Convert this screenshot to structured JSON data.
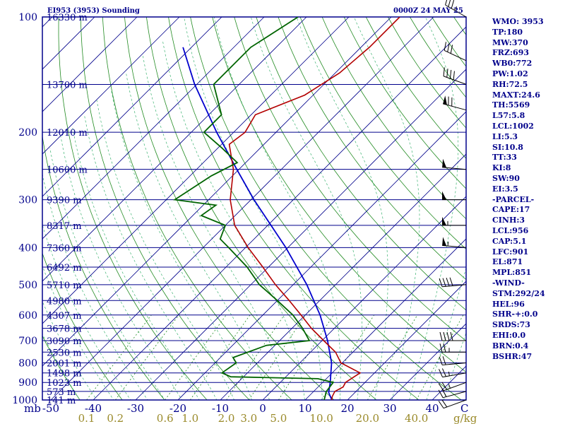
{
  "header": {
    "title": "EI953 (3953) Sounding",
    "time": "0000Z 24 MAY 25"
  },
  "sidebar": [
    "WMO: 3953",
    "TP:180",
    "MW:370",
    "FRZ:693",
    "WB0:772",
    "PW:1.02",
    "RH:72.5",
    "MAXT:24.6",
    "TH:5569",
    "L57:5.8",
    "LCL:1002",
    "LI:5.3",
    "SI:10.8",
    "TT:33",
    "KI:8",
    "SW:90",
    "EI:3.5",
    "-PARCEL-",
    "CAPE:17",
    "CINH:3",
    "LCL:956",
    "CAP:5.1",
    "LFC:901",
    "EL:871",
    "MPL:851",
    "-WIND-",
    "STM:292/24",
    "HEL:96",
    "SHR-+:0.0",
    "SRDS:73",
    "EHI:0.0",
    "BRN:0.4",
    "BSHR:47"
  ],
  "colors": {
    "isobar": "#00008b",
    "isotherm": "#00008b",
    "dry_adiabat": "#228b22",
    "moist_adiabat": "#3cb371",
    "mixing_ratio": "#228b22",
    "temperature": "#b30000",
    "dewpoint": "#006400",
    "parcel": "#0000cd",
    "wind_barb": "#000000"
  },
  "chart_data": {
    "type": "skew-t",
    "pressure_axis_label": "mb",
    "pressure_ticks": [
      100,
      200,
      300,
      400,
      500,
      600,
      700,
      800,
      900,
      1000
    ],
    "temperature_axis_unit": "C",
    "temperature_ticks": [
      -50,
      -40,
      -30,
      -20,
      -10,
      0,
      10,
      20,
      30,
      40
    ],
    "mixing_ratio_unit": "g/kg",
    "mixing_ratio_ticks": [
      "0.1",
      "0.2",
      "0.6",
      "1.0",
      "2.0",
      "3.0",
      "5.0",
      "10.0",
      "20.0",
      "40.0"
    ],
    "mixing_ratio_values": [
      0.1,
      0.2,
      0.6,
      1.0,
      2.0,
      3.0,
      5.0,
      10.0,
      20.0,
      40.0
    ],
    "height_labels": [
      {
        "p": 100,
        "text": "16330 m"
      },
      {
        "p": 150,
        "text": "13700 m"
      },
      {
        "p": 200,
        "text": "12010 m"
      },
      {
        "p": 250,
        "text": "10600 m"
      },
      {
        "p": 300,
        "text": "9390 m"
      },
      {
        "p": 350,
        "text": "8317 m"
      },
      {
        "p": 400,
        "text": "7360 m"
      },
      {
        "p": 450,
        "text": "6492 m"
      },
      {
        "p": 500,
        "text": "5710 m"
      },
      {
        "p": 550,
        "text": "4980 m"
      },
      {
        "p": 600,
        "text": "4307 m"
      },
      {
        "p": 650,
        "text": "3678 m"
      },
      {
        "p": 700,
        "text": "3090 m"
      },
      {
        "p": 750,
        "text": "2530 m"
      },
      {
        "p": 800,
        "text": "2001 m"
      },
      {
        "p": 850,
        "text": "1498 m"
      },
      {
        "p": 900,
        "text": "1023 m"
      },
      {
        "p": 950,
        "text": "573 m"
      },
      {
        "p": 1000,
        "text": "141 m"
      }
    ],
    "temperature": [
      {
        "p": 1000,
        "t": 16.3
      },
      {
        "p": 980,
        "t": 15.6
      },
      {
        "p": 950,
        "t": 15.0
      },
      {
        "p": 925,
        "t": 15.9
      },
      {
        "p": 900,
        "t": 15.4
      },
      {
        "p": 870,
        "t": 16.1
      },
      {
        "p": 850,
        "t": 16.6
      },
      {
        "p": 800,
        "t": 9.7
      },
      {
        "p": 750,
        "t": 5.9
      },
      {
        "p": 700,
        "t": 0.4
      },
      {
        "p": 650,
        "t": -5.4
      },
      {
        "p": 600,
        "t": -11.0
      },
      {
        "p": 550,
        "t": -17.2
      },
      {
        "p": 500,
        "t": -24.2
      },
      {
        "p": 450,
        "t": -31.3
      },
      {
        "p": 400,
        "t": -39.4
      },
      {
        "p": 350,
        "t": -47.8
      },
      {
        "p": 300,
        "t": -54.9
      },
      {
        "p": 250,
        "t": -61.3
      },
      {
        "p": 215,
        "t": -68.2
      },
      {
        "p": 200,
        "t": -67.3
      },
      {
        "p": 180,
        "t": -69.0
      },
      {
        "p": 160,
        "t": -62.0
      },
      {
        "p": 140,
        "t": -59.0
      },
      {
        "p": 120,
        "t": -58.0
      },
      {
        "p": 100,
        "t": -58.0
      }
    ],
    "dewpoint": [
      {
        "p": 1000,
        "t": 14.5
      },
      {
        "p": 950,
        "t": 13.0
      },
      {
        "p": 900,
        "t": 12.5
      },
      {
        "p": 880,
        "t": 8.0
      },
      {
        "p": 870,
        "t": -13.0
      },
      {
        "p": 850,
        "t": -16.0
      },
      {
        "p": 800,
        "t": -15.0
      },
      {
        "p": 775,
        "t": -17.0
      },
      {
        "p": 720,
        "t": -12.0
      },
      {
        "p": 700,
        "t": -3.0
      },
      {
        "p": 650,
        "t": -7.5
      },
      {
        "p": 600,
        "t": -12.9
      },
      {
        "p": 550,
        "t": -20.0
      },
      {
        "p": 500,
        "t": -28.0
      },
      {
        "p": 450,
        "t": -35.0
      },
      {
        "p": 400,
        "t": -44.0
      },
      {
        "p": 380,
        "t": -48.0
      },
      {
        "p": 350,
        "t": -50.0
      },
      {
        "p": 330,
        "t": -58.0
      },
      {
        "p": 310,
        "t": -57.0
      },
      {
        "p": 300,
        "t": -68.0
      },
      {
        "p": 260,
        "t": -65.0
      },
      {
        "p": 240,
        "t": -62.0
      },
      {
        "p": 220,
        "t": -69.0
      },
      {
        "p": 200,
        "t": -77.0
      },
      {
        "p": 180,
        "t": -77.0
      },
      {
        "p": 150,
        "t": -86.0
      },
      {
        "p": 120,
        "t": -86.0
      },
      {
        "p": 100,
        "t": -82.0
      }
    ],
    "parcel": [
      {
        "p": 1000,
        "t": 16.3
      },
      {
        "p": 956,
        "t": 13.8
      },
      {
        "p": 900,
        "t": 11.8
      },
      {
        "p": 800,
        "t": 7.5
      },
      {
        "p": 700,
        "t": 1.3
      },
      {
        "p": 600,
        "t": -6.5
      },
      {
        "p": 500,
        "t": -16.8
      },
      {
        "p": 400,
        "t": -30.5
      },
      {
        "p": 300,
        "t": -49.3
      },
      {
        "p": 250,
        "t": -60.5
      },
      {
        "p": 200,
        "t": -74.0
      },
      {
        "p": 150,
        "t": -90.5
      },
      {
        "p": 120,
        "t": -102.0
      }
    ],
    "wind_barbs": [
      {
        "p": 1000,
        "dir": 250,
        "kt": 20
      },
      {
        "p": 950,
        "dir": 255,
        "kt": 20
      },
      {
        "p": 900,
        "dir": 250,
        "kt": 25
      },
      {
        "p": 850,
        "dir": 260,
        "kt": 25
      },
      {
        "p": 800,
        "dir": 265,
        "kt": 20
      },
      {
        "p": 750,
        "dir": 270,
        "kt": 25
      },
      {
        "p": 700,
        "dir": 270,
        "kt": 40
      },
      {
        "p": 500,
        "dir": 265,
        "kt": 40
      },
      {
        "p": 400,
        "dir": 275,
        "kt": 55
      },
      {
        "p": 350,
        "dir": 270,
        "kt": 55
      },
      {
        "p": 300,
        "dir": 270,
        "kt": 50
      },
      {
        "p": 250,
        "dir": 275,
        "kt": 50
      },
      {
        "p": 175,
        "dir": 285,
        "kt": 70
      },
      {
        "p": 150,
        "dir": 290,
        "kt": 40
      },
      {
        "p": 130,
        "dir": 295,
        "kt": 30
      },
      {
        "p": 100,
        "dir": 300,
        "kt": 35
      }
    ]
  }
}
